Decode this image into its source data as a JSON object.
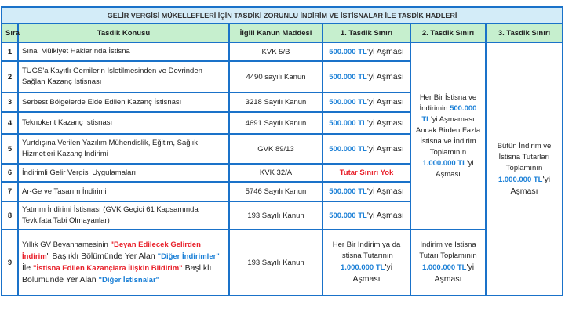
{
  "title": "GELİR VERGİSİ MÜKELLEFLERİ İÇİN TASDİKİ ZORUNLU İNDİRİM VE İSTİSNALAR İLE TASDİK HADLERİ",
  "headers": [
    "Sıra",
    "Tasdik Konusu",
    "İlgili Kanun Maddesi",
    "1. Tasdik Sınırı",
    "2. Tasdik Sınırı",
    "3. Tasdik Sınırı"
  ],
  "colors": {
    "border": "#1a72c9",
    "title_bg": "#d3ecf8",
    "header_bg": "#c6efce",
    "amount_blue": "#1a7fd6",
    "highlight_red": "#e8202a"
  },
  "rows": [
    {
      "no": "1",
      "konu": [
        {
          "t": "Sınai Mülkiyet Haklarında İstisna",
          "s": ""
        }
      ],
      "kanun": "KVK 5/B",
      "sinir1": [
        {
          "t": "500.000 TL",
          "s": "blue"
        },
        {
          "t": "'yi Aşması",
          "s": "big"
        }
      ],
      "h": 24
    },
    {
      "no": "2",
      "konu": [
        {
          "t": "TUGS'a Kayıtlı Gemilerin İşletilmesinden ve Devrinden Sağlan Kazanç İstisnası",
          "s": ""
        }
      ],
      "kanun": "4490 sayılı Kanun",
      "sinir1": [
        {
          "t": "500.000 TL",
          "s": "blue"
        },
        {
          "t": "'yi Aşması",
          "s": "big"
        }
      ],
      "h": 40
    },
    {
      "no": "3",
      "konu": [
        {
          "t": "Serbest Bölgelerde Elde Edilen Kazanç İstisnası",
          "s": ""
        }
      ],
      "kanun": "3218 Sayılı Kanun",
      "sinir1": [
        {
          "t": "500.000 TL",
          "s": "blue"
        },
        {
          "t": "'yi Aşması",
          "s": "big"
        }
      ],
      "h": 25
    },
    {
      "no": "4",
      "konu": [
        {
          "t": "Teknokent Kazanç İstisnası",
          "s": ""
        }
      ],
      "kanun": "4691 Sayılı Kanun",
      "sinir1": [
        {
          "t": "500.000 TL",
          "s": "blue"
        },
        {
          "t": "'yi Aşması",
          "s": "big"
        }
      ],
      "h": 28
    },
    {
      "no": "5",
      "konu": [
        {
          "t": "Yurtdışına Verilen Yazılım Mühendislik, Eğitim, Sağlık Hizmetleri Kazanç İndirimi",
          "s": ""
        }
      ],
      "kanun": "GVK 89/13",
      "sinir1": [
        {
          "t": "500.000 TL",
          "s": "blue"
        },
        {
          "t": "'yi Aşması",
          "s": "big"
        }
      ],
      "h": 38
    },
    {
      "no": "6",
      "konu": [
        {
          "t": "İndirimli Gelir Vergisi Uygulamaları",
          "s": ""
        }
      ],
      "kanun": "KVK 32/A",
      "sinir1": [
        {
          "t": "Tutar Sınırı Yok",
          "s": "red"
        }
      ],
      "h": 23
    },
    {
      "no": "7",
      "konu": [
        {
          "t": "Ar-Ge ve Tasarım İndirimi",
          "s": ""
        }
      ],
      "kanun": "5746 Sayılı Kanun",
      "sinir1": [
        {
          "t": "500.000 TL",
          "s": "blue"
        },
        {
          "t": "'yi Aşması",
          "s": "big"
        }
      ],
      "h": 25
    },
    {
      "no": "8",
      "konu": [
        {
          "t": "Yatırım İndirimi İstisnası (GVK Geçici 61 Kapsamında Tevkifata Tabi Olmayanlar)",
          "s": ""
        }
      ],
      "kanun": "193 Sayılı Kanun",
      "sinir1": [
        {
          "t": "500.000 TL",
          "s": "blue"
        },
        {
          "t": "'yi Aşması",
          "s": "big"
        }
      ],
      "h": 36
    },
    {
      "no": "9",
      "konu": [
        {
          "t": "Yıllık GV Beyannamesinin ",
          "s": ""
        },
        {
          "t": "\"Beyan Edilecek Gelirden İndirim",
          "s": "red"
        },
        {
          "t": "\" Başlıklı Bölümünde Yer Alan ",
          "s": "big"
        },
        {
          "t": "\"Diğer İndirimler\"",
          "s": "blue"
        },
        {
          "t": " İle ",
          "s": "big"
        },
        {
          "t": "\"İstisna Edilen Kazançlara İlişkin Bildirim\"",
          "s": "red"
        },
        {
          "t": " Başlıklı Bölümünde Yer Alan ",
          "s": "big"
        },
        {
          "t": "\"Diğer İstisnalar\"",
          "s": "blue"
        }
      ],
      "kanun": "193 Sayılı Kanun",
      "sinir1": [
        {
          "t": "Her Bir İndirim ya da İstisna Tutarının ",
          "s": ""
        },
        {
          "t": "1.000.000 TL",
          "s": "blue"
        },
        {
          "t": "'yi Aşması",
          "s": "big"
        }
      ],
      "h": 84
    }
  ],
  "sinir2_group": [
    {
      "t": "Her Bir İstisna ve İndirimin ",
      "s": ""
    },
    {
      "t": "500.000 TL",
      "s": "blue"
    },
    {
      "t": "'yi Aşmaması Ancak Birden Fazla İstisna ve İndirim Toplamının ",
      "s": ""
    },
    {
      "t": "1.000.000 TL",
      "s": "blue"
    },
    {
      "t": "'yi Aşması",
      "s": ""
    }
  ],
  "sinir2_row9": [
    {
      "t": "İndirim ve İstisna Tutarı Toplamının ",
      "s": ""
    },
    {
      "t": "1.000.000 TL",
      "s": "blue"
    },
    {
      "t": "'yi Aşması",
      "s": "big"
    }
  ],
  "sinir3_all": [
    {
      "t": "Bütün İndirim ve İstisna Tutarları Toplamının ",
      "s": ""
    },
    {
      "t": "1.000.000 TL",
      "s": "blue"
    },
    {
      "t": "'yi Aşması",
      "s": "big"
    }
  ]
}
